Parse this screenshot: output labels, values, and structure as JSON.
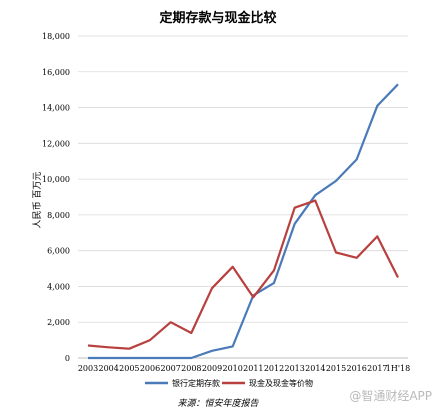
{
  "chart_data": {
    "type": "line",
    "title": "定期存款与现金比较",
    "ylabel": "人民币 百万元",
    "xlabel": "",
    "ylim": [
      0,
      18000
    ],
    "y_ticks": [
      "0",
      "2,000",
      "4,000",
      "6,000",
      "8,000",
      "10,000",
      "12,000",
      "14,000",
      "16,000",
      "18,000"
    ],
    "grid": true,
    "legend_position": "bottom",
    "categories": [
      "2003",
      "2004",
      "2005",
      "2006",
      "2007",
      "2008",
      "2009",
      "2010",
      "2011",
      "2012",
      "2013",
      "2014",
      "2015",
      "2016",
      "2017",
      "1H'18"
    ],
    "series": [
      {
        "name": "银行定期存款",
        "color": "#4a7ab8",
        "values": [
          0,
          0,
          0,
          0,
          0,
          0,
          400,
          650,
          3500,
          4200,
          7500,
          9100,
          9900,
          11100,
          14100,
          15300
        ]
      },
      {
        "name": "现金及现金等价物",
        "color": "#b8403e",
        "values": [
          700,
          600,
          520,
          1000,
          2000,
          1400,
          3900,
          5100,
          3400,
          4900,
          8400,
          8800,
          5900,
          5600,
          6800,
          4500
        ]
      }
    ]
  },
  "source_note": "来源：恒安年度报告",
  "watermark": "@智通财经APP"
}
